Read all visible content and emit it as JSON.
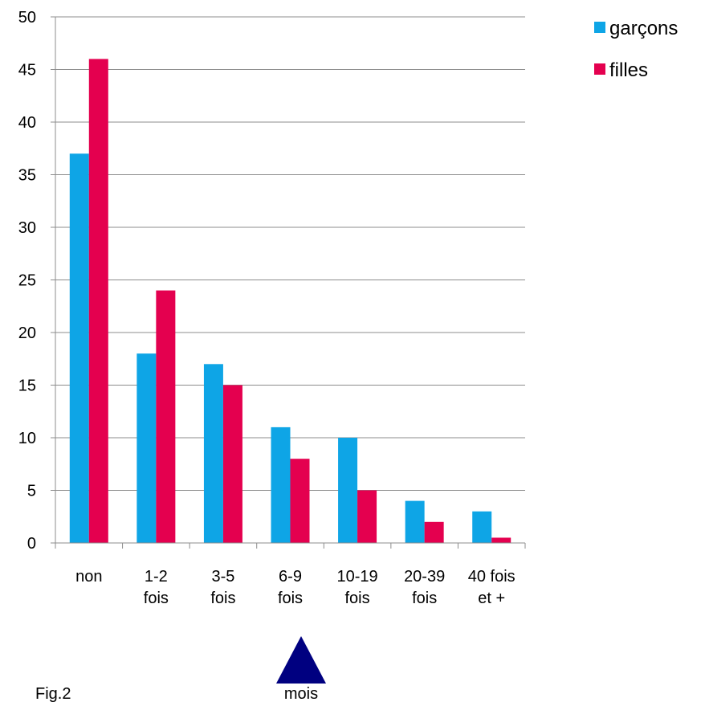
{
  "chart_data": {
    "type": "bar",
    "title": "",
    "xlabel": "",
    "ylabel": "",
    "ylim": [
      0,
      50
    ],
    "ytick_step": 5,
    "yticks": [
      "0",
      "5",
      "10",
      "15",
      "20",
      "25",
      "30",
      "35",
      "40",
      "45",
      "50"
    ],
    "grid": true,
    "legend_position": "top-right",
    "categories": [
      [
        "non"
      ],
      [
        "1-2",
        "fois"
      ],
      [
        "3-5",
        "fois"
      ],
      [
        "6-9",
        "fois"
      ],
      [
        "10-19",
        "fois"
      ],
      [
        "20-39",
        "fois"
      ],
      [
        "40 fois",
        "et +"
      ]
    ],
    "series": [
      {
        "name": "garçons",
        "color": "#0ea5e6",
        "values": [
          37,
          18,
          17,
          11,
          10,
          4,
          3
        ]
      },
      {
        "name": "filles",
        "color": "#e4004f",
        "values": [
          46,
          24,
          15,
          8,
          5,
          2,
          0.5
        ]
      }
    ]
  },
  "annotation": {
    "marker_icon": "triangle-up-icon",
    "marker_color": "#000080",
    "unit_label": "mois"
  },
  "caption": "Fig.2"
}
